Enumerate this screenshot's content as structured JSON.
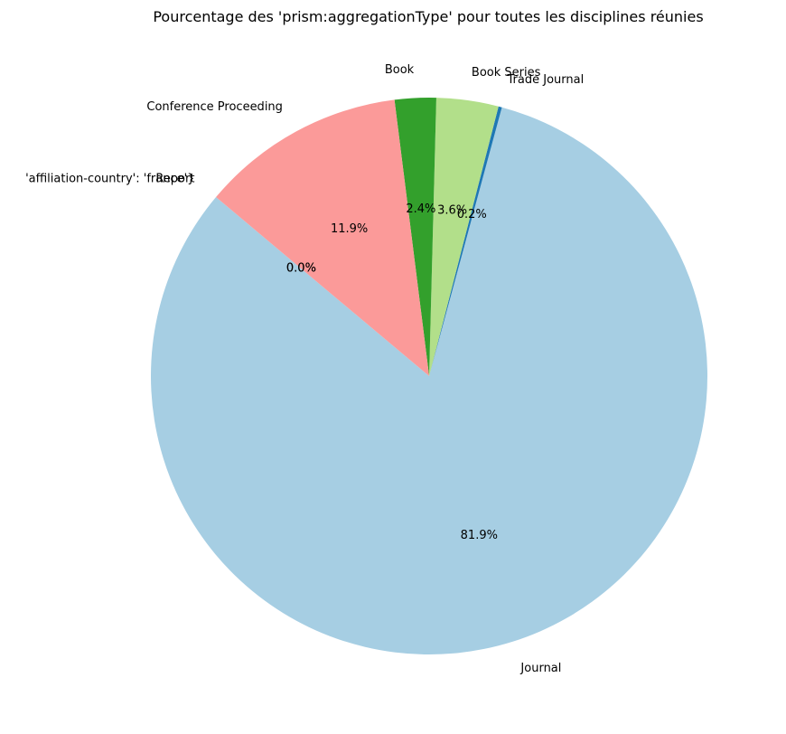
{
  "chart_data": {
    "type": "pie",
    "title": "Pourcentage des 'prism:aggregationType' pour toutes les disciplines réunies",
    "slices": [
      {
        "label": "Journal",
        "value": 81.9,
        "pct_label": "81.9%",
        "color": "#a6cee3"
      },
      {
        "label": "Trade Journal",
        "value": 0.2,
        "pct_label": "0.2%",
        "color": "#1f78b4"
      },
      {
        "label": "Book Series",
        "value": 3.6,
        "pct_label": "3.6%",
        "color": "#b2df8a"
      },
      {
        "label": "Book",
        "value": 2.4,
        "pct_label": "2.4%",
        "color": "#33a02c"
      },
      {
        "label": "Conference Proceeding",
        "value": 11.9,
        "pct_label": "11.9%",
        "color": "#fb9a99"
      },
      {
        "label": "Report",
        "value": 0.0,
        "pct_label": "0.0%",
        "color": "#e31a1c"
      },
      {
        "label": "'affiliation-country': 'france'}",
        "value": 0.0,
        "pct_label": "0.0%",
        "color": "#fdbf6f"
      }
    ],
    "start_angle_deg": 140,
    "direction": "counterclockwise",
    "legend": "none"
  }
}
